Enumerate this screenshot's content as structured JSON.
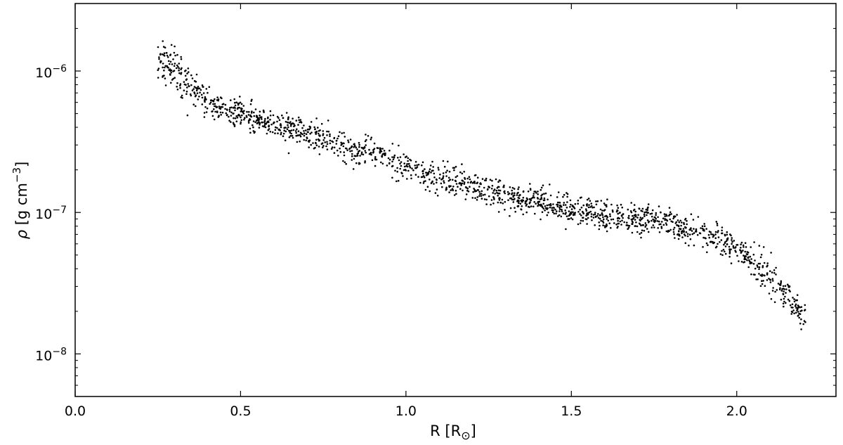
{
  "chart_data": {
    "type": "scatter",
    "xlabel": "R [R",
    "xlabel_sub": "⊙",
    "xlabel_close": "]",
    "ylabel_symbol": "ρ",
    "ylabel_text": " [g cm",
    "ylabel_sup": "−3",
    "ylabel_close": "]",
    "xlim": [
      0.0,
      2.3
    ],
    "ylim": [
      5e-09,
      3e-06
    ],
    "yscale": "log",
    "grid": false,
    "legend": "none",
    "marker_color": "#000000",
    "x_ticks": [
      {
        "value": 0.0,
        "label": "0.0"
      },
      {
        "value": 0.5,
        "label": "0.5"
      },
      {
        "value": 1.0,
        "label": "1.0"
      },
      {
        "value": 1.5,
        "label": "1.5"
      },
      {
        "value": 2.0,
        "label": "2.0"
      }
    ],
    "y_ticks": [
      {
        "value": 1e-06,
        "base": "10",
        "exp": "−6"
      },
      {
        "value": 1e-07,
        "base": "10",
        "exp": "−7"
      },
      {
        "value": 1e-08,
        "base": "10",
        "exp": "−8"
      }
    ],
    "trend_points": [
      [
        0.25,
        1.2e-06
      ],
      [
        0.3,
        1.05e-06
      ],
      [
        0.35,
        7.5e-07
      ],
      [
        0.4,
        5.8e-07
      ],
      [
        0.5,
        5e-07
      ],
      [
        0.6,
        4.2e-07
      ],
      [
        0.7,
        3.7e-07
      ],
      [
        0.8,
        3e-07
      ],
      [
        0.9,
        2.6e-07
      ],
      [
        1.0,
        2.1e-07
      ],
      [
        1.1,
        1.75e-07
      ],
      [
        1.2,
        1.55e-07
      ],
      [
        1.3,
        1.3e-07
      ],
      [
        1.4,
        1.2e-07
      ],
      [
        1.5,
        1.05e-07
      ],
      [
        1.6,
        9.5e-08
      ],
      [
        1.7,
        9e-08
      ],
      [
        1.8,
        8.5e-08
      ],
      [
        1.9,
        7.2e-08
      ],
      [
        2.0,
        5.5e-08
      ],
      [
        2.05,
        4.5e-08
      ],
      [
        2.1,
        3.6e-08
      ],
      [
        2.15,
        2.6e-08
      ],
      [
        2.2,
        1.9e-08
      ]
    ],
    "x_range": [
      0.25,
      2.21
    ],
    "n_points": 1800,
    "scatter_log10": 0.085,
    "seed": 12345
  }
}
